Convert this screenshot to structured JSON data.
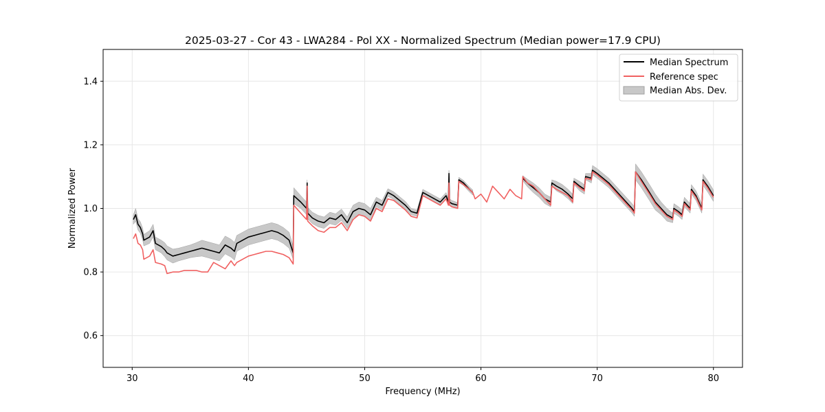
{
  "chart_data": {
    "type": "line",
    "title": "2025-03-27 - Cor 43 - LWA284 - Pol XX - Normalized Spectrum (Median power=17.9 CPU)",
    "xlabel": "Frequency (MHz)",
    "ylabel": "Normalized Power",
    "xlim": [
      27.5,
      82.5
    ],
    "ylim": [
      0.5,
      1.5
    ],
    "xticks": [
      30,
      40,
      50,
      60,
      70,
      80
    ],
    "yticks": [
      0.6,
      0.8,
      1.0,
      1.2,
      1.4
    ],
    "xtick_labels": [
      "30",
      "40",
      "50",
      "60",
      "70",
      "80"
    ],
    "ytick_labels": [
      "0.6",
      "0.8",
      "1.0",
      "1.2",
      "1.4"
    ],
    "grid": true,
    "legend_position": "top-right",
    "legend": [
      "Median Spectrum",
      "Reference spec",
      "Median Abs. Dev."
    ],
    "colors": {
      "median": "#000000",
      "reference": "#f06060",
      "mad_fill": "#c8c8c8",
      "mad_edge": "#a0a0a0"
    },
    "series": [
      {
        "name": "Median Spectrum",
        "x": [
          30.1,
          30.3,
          30.5,
          30.7,
          30.9,
          31.0,
          31.5,
          31.8,
          32.0,
          32.5,
          32.8,
          33.0,
          33.5,
          34.0,
          34.5,
          35.0,
          35.5,
          36.0,
          36.5,
          37.0,
          37.5,
          38.0,
          38.5,
          38.8,
          39.0,
          39.5,
          40.0,
          40.5,
          41.0,
          41.5,
          42.0,
          42.5,
          43.0,
          43.5,
          43.85,
          43.9,
          44.5,
          45.0,
          45.05,
          45.1,
          45.5,
          46.0,
          46.5,
          47.0,
          47.5,
          48.0,
          48.5,
          49.0,
          49.5,
          50.0,
          50.5,
          51.0,
          51.5,
          52.0,
          52.5,
          53.0,
          53.5,
          54.0,
          54.5,
          55.0,
          55.5,
          56.0,
          56.5,
          57.0,
          57.2,
          57.25,
          57.3,
          57.5,
          58.0,
          58.1,
          58.5,
          59.0,
          59.3,
          63.6,
          64.0,
          64.5,
          65.0,
          65.5,
          66.0,
          66.1,
          66.5,
          67.0,
          67.5,
          67.9,
          68.0,
          68.5,
          68.9,
          69.0,
          69.5,
          69.6,
          70.0,
          70.5,
          71.0,
          71.5,
          72.0,
          72.5,
          73.0,
          73.2,
          73.3,
          73.8,
          74.5,
          75.0,
          75.5,
          76.0,
          76.5,
          76.6,
          77.0,
          77.3,
          77.5,
          78.0,
          78.1,
          78.5,
          79.0,
          79.1,
          79.5,
          80.0
        ],
        "values": [
          0.965,
          0.98,
          0.95,
          0.94,
          0.92,
          0.9,
          0.91,
          0.93,
          0.89,
          0.88,
          0.87,
          0.86,
          0.85,
          0.855,
          0.86,
          0.865,
          0.87,
          0.875,
          0.87,
          0.865,
          0.86,
          0.885,
          0.875,
          0.865,
          0.89,
          0.9,
          0.91,
          0.915,
          0.92,
          0.925,
          0.93,
          0.925,
          0.915,
          0.9,
          0.86,
          1.04,
          1.02,
          1.0,
          1.08,
          0.985,
          0.97,
          0.96,
          0.955,
          0.97,
          0.965,
          0.98,
          0.955,
          0.99,
          1.0,
          0.995,
          0.98,
          1.02,
          1.01,
          1.05,
          1.04,
          1.025,
          1.01,
          0.99,
          0.985,
          1.05,
          1.04,
          1.03,
          1.02,
          1.04,
          1.02,
          1.11,
          1.02,
          1.015,
          1.01,
          1.09,
          1.08,
          1.06,
          1.05,
          1.095,
          1.08,
          1.065,
          1.05,
          1.03,
          1.02,
          1.08,
          1.07,
          1.06,
          1.045,
          1.03,
          1.085,
          1.07,
          1.06,
          1.1,
          1.095,
          1.12,
          1.11,
          1.095,
          1.08,
          1.06,
          1.04,
          1.02,
          1.0,
          0.99,
          1.115,
          1.09,
          1.05,
          1.02,
          1.0,
          0.98,
          0.97,
          1.0,
          0.99,
          0.98,
          1.02,
          1.0,
          1.06,
          1.04,
          1.0,
          1.09,
          1.07,
          1.04
        ]
      },
      {
        "name": "Reference spec",
        "x": [
          30.1,
          30.3,
          30.5,
          30.7,
          30.9,
          31.0,
          31.5,
          31.8,
          32.0,
          32.5,
          32.8,
          33.0,
          33.5,
          34.0,
          34.5,
          35.0,
          35.5,
          36.0,
          36.5,
          37.0,
          37.5,
          38.0,
          38.5,
          38.8,
          39.0,
          39.5,
          40.0,
          40.5,
          41.0,
          41.5,
          42.0,
          42.5,
          43.0,
          43.5,
          43.85,
          43.9,
          44.5,
          45.0,
          45.05,
          45.1,
          45.5,
          46.0,
          46.5,
          47.0,
          47.5,
          48.0,
          48.5,
          49.0,
          49.5,
          50.0,
          50.5,
          51.0,
          51.5,
          52.0,
          52.5,
          53.0,
          53.5,
          54.0,
          54.5,
          55.0,
          55.5,
          56.0,
          56.5,
          57.0,
          57.2,
          57.25,
          57.3,
          57.5,
          58.0,
          58.1,
          58.5,
          59.0,
          59.3,
          59.5,
          60.0,
          60.5,
          61.0,
          61.5,
          62.0,
          62.5,
          63.0,
          63.5,
          63.6,
          64.0,
          64.5,
          65.0,
          65.5,
          66.0,
          66.1,
          66.5,
          67.0,
          67.5,
          67.9,
          68.0,
          68.5,
          68.9,
          69.0,
          69.5,
          69.6,
          70.0,
          70.5,
          71.0,
          71.5,
          72.0,
          72.5,
          73.0,
          73.2,
          73.3,
          73.8,
          74.5,
          75.0,
          75.5,
          76.0,
          76.5,
          76.6,
          77.0,
          77.3,
          77.5,
          78.0,
          78.1,
          78.5,
          79.0,
          79.1,
          79.5,
          80.0
        ],
        "values": [
          0.905,
          0.92,
          0.89,
          0.885,
          0.87,
          0.84,
          0.85,
          0.87,
          0.83,
          0.825,
          0.82,
          0.795,
          0.8,
          0.8,
          0.805,
          0.805,
          0.805,
          0.8,
          0.8,
          0.83,
          0.82,
          0.81,
          0.835,
          0.82,
          0.83,
          0.84,
          0.85,
          0.855,
          0.86,
          0.865,
          0.865,
          0.86,
          0.855,
          0.845,
          0.825,
          1.01,
          0.985,
          0.965,
          1.07,
          0.96,
          0.945,
          0.93,
          0.925,
          0.94,
          0.94,
          0.955,
          0.93,
          0.965,
          0.98,
          0.975,
          0.96,
          1.0,
          0.99,
          1.03,
          1.025,
          1.01,
          0.995,
          0.975,
          0.97,
          1.04,
          1.03,
          1.02,
          1.01,
          1.03,
          1.01,
          1.08,
          1.01,
          1.005,
          1.0,
          1.085,
          1.075,
          1.06,
          1.05,
          1.03,
          1.045,
          1.02,
          1.07,
          1.05,
          1.03,
          1.06,
          1.04,
          1.03,
          1.1,
          1.08,
          1.07,
          1.05,
          1.03,
          1.01,
          1.07,
          1.06,
          1.05,
          1.04,
          1.02,
          1.08,
          1.065,
          1.055,
          1.095,
          1.09,
          1.115,
          1.105,
          1.09,
          1.075,
          1.055,
          1.035,
          1.015,
          0.995,
          0.985,
          1.115,
          1.085,
          1.045,
          1.015,
          0.995,
          0.975,
          0.965,
          0.995,
          0.985,
          0.975,
          1.015,
          0.995,
          1.055,
          1.035,
          0.995,
          1.085,
          1.065,
          1.035
        ]
      }
    ],
    "mad_band": {
      "name": "Median Abs. Dev.",
      "gap": [
        59.3,
        63.6
      ],
      "half_width": [
        0.015,
        0.02,
        0.018,
        0.018,
        0.018,
        0.018,
        0.02,
        0.02,
        0.02,
        0.02,
        0.022,
        0.022,
        0.022,
        0.02,
        0.02,
        0.02,
        0.022,
        0.025,
        0.025,
        0.025,
        0.025,
        0.028,
        0.028,
        0.028,
        0.025,
        0.025,
        0.025,
        0.025,
        0.025,
        0.025,
        0.025,
        0.025,
        0.025,
        0.025,
        0.02,
        0.025,
        0.02,
        0.02,
        0.01,
        0.018,
        0.018,
        0.018,
        0.018,
        0.018,
        0.018,
        0.018,
        0.018,
        0.02,
        0.02,
        0.02,
        0.02,
        0.015,
        0.015,
        0.012,
        0.012,
        0.012,
        0.012,
        0.01,
        0.01,
        0.01,
        0.01,
        0.01,
        0.01,
        0.01,
        0.01,
        0.01,
        0.01,
        0.01,
        0.008,
        0.008,
        0.008,
        0.008,
        0.008,
        0.008,
        0.012,
        0.015,
        0.015,
        0.015,
        0.015,
        0.01,
        0.015,
        0.015,
        0.015,
        0.015,
        0.01,
        0.015,
        0.015,
        0.01,
        0.015,
        0.015,
        0.015,
        0.015,
        0.015,
        0.015,
        0.015,
        0.015,
        0.015,
        0.015,
        0.025,
        0.025,
        0.025,
        0.025,
        0.02,
        0.02,
        0.015,
        0.015,
        0.015,
        0.015,
        0.015,
        0.015,
        0.015,
        0.015,
        0.015,
        0.018,
        0.018,
        0.018
      ]
    }
  }
}
